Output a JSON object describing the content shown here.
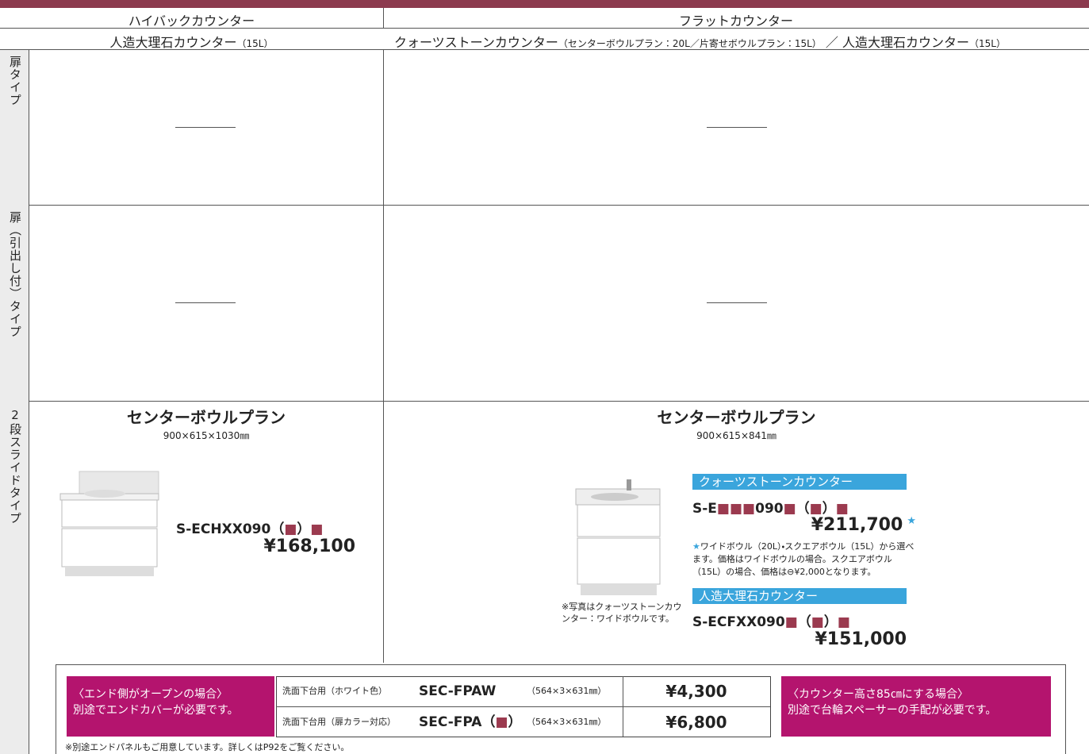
{
  "header": {
    "left": {
      "counter_type": "ハイバックカウンター",
      "material": "人造大理石カウンター",
      "material_note": "（15L）"
    },
    "right": {
      "counter_type": "フラットカウンター",
      "material": "クォーツストーンカウンター",
      "material_note": "（センターボウルプラン：20L／片寄せボウルプラン：15L）",
      "separator": "／",
      "material2": "人造大理石カウンター",
      "material2_note": "（15L）"
    }
  },
  "rows": [
    "扉タイプ",
    "扉（引出し付）タイプ",
    "2段スライドタイプ"
  ],
  "slide_type": {
    "left": {
      "plan": "センターボウルプラン",
      "size": "900×615×1030㎜",
      "model": "S-ECHXX090（■）■",
      "price": "¥168,100"
    },
    "right": {
      "plan": "センターボウルプラン",
      "size": "900×615×841㎜",
      "photo_note": "※写真はクォーツストーンカウンター：ワイドボウルです。",
      "quartz": {
        "label": "クォーツストーンカウンター",
        "model": "S-E■■■090■（■）■",
        "price": "¥211,700",
        "star": "★",
        "note": "★ワイドボウル（20L）・スクエアボウル（15L）から選べます。価格はワイドボウルの場合。スクエアボウル（15L）の場合、価格は⊖¥2,000となります。"
      },
      "marble": {
        "label": "人造大理石カウンター",
        "model": "S-ECFXX090■（■）■",
        "price": "¥151,000"
      }
    }
  },
  "end_cover": {
    "title": "〈エンド側がオープンの場合〉",
    "message": "別途でエンドカバーが必要です。",
    "rows": [
      {
        "use": "洗面下台用（ホワイト色）",
        "model": "SEC-FPAW",
        "size": "（564×3×631㎜）",
        "price": "¥4,300"
      },
      {
        "use": "洗面下台用（扉カラー対応）",
        "model": "SEC-FPA（■）",
        "size": "（564×3×631㎜）",
        "price": "¥6,800"
      }
    ]
  },
  "base_spacer": {
    "title": "〈カウンター高さ85㎝にする場合〉",
    "message": "別途で台輪スペーサーの手配が必要です。"
  },
  "footnote": "※別途エンドパネルもご用意しています。詳しくはP92をご覧ください。"
}
